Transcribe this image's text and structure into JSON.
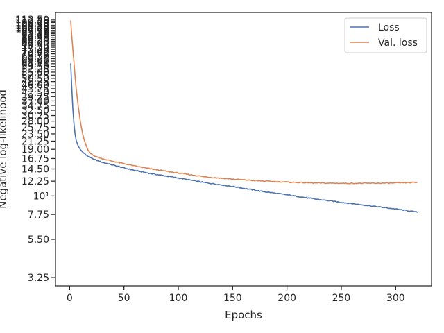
{
  "chart_data": {
    "type": "line",
    "xlabel": "Epochs",
    "ylabel": "Negative log-likelihood",
    "y_scale": "log",
    "grid": false,
    "legend_placement": "top-right",
    "xlim": [
      -13,
      333
    ],
    "ylim": [
      2.9,
      125
    ],
    "x_ticks": [
      0,
      50,
      100,
      150,
      200,
      250,
      300
    ],
    "x_tick_labels": [
      "0",
      "50",
      "100",
      "150",
      "200",
      "250",
      "300"
    ],
    "y_ticks": [
      {
        "value": 3.25,
        "label": "3.25"
      },
      {
        "value": 5.5,
        "label": "5.50"
      },
      {
        "value": 7.75,
        "label": "7.75"
      },
      {
        "value": 10,
        "label": "10¹"
      },
      {
        "value": 12.25,
        "label": "12.25"
      },
      {
        "value": 14.5,
        "label": "14.50"
      },
      {
        "value": 16.75,
        "label": "16.75"
      },
      {
        "value": 19.0,
        "label": "19.00"
      },
      {
        "value": 21.25,
        "label": "21.25"
      },
      {
        "value": 23.5,
        "label": "23.50"
      },
      {
        "value": 25.75,
        "label": "25.75"
      },
      {
        "value": 28.0,
        "label": "28.00"
      },
      {
        "value": 30.25,
        "label": "30.25"
      },
      {
        "value": 32.5,
        "label": "32.50"
      },
      {
        "value": 34.75,
        "label": "34.75"
      },
      {
        "value": 37.0,
        "label": "37.00"
      },
      {
        "value": 39.25,
        "label": "39.25"
      },
      {
        "value": 41.5,
        "label": "41.50"
      },
      {
        "value": 43.75,
        "label": "43.75"
      },
      {
        "value": 46.0,
        "label": "46.00"
      },
      {
        "value": 48.25,
        "label": "48.25"
      },
      {
        "value": 50.5,
        "label": "50.50"
      },
      {
        "value": 52.75,
        "label": "52.75"
      },
      {
        "value": 55.0,
        "label": "55.00"
      },
      {
        "value": 57.25,
        "label": "57.25"
      },
      {
        "value": 59.5,
        "label": "59.50"
      },
      {
        "value": 61.75,
        "label": "61.75"
      },
      {
        "value": 64.0,
        "label": "64.00"
      },
      {
        "value": 66.25,
        "label": "66.25"
      },
      {
        "value": 68.5,
        "label": "68.50"
      },
      {
        "value": 70.75,
        "label": "70.75"
      },
      {
        "value": 73.0,
        "label": "73.00"
      },
      {
        "value": 75.25,
        "label": "75.25"
      },
      {
        "value": 77.5,
        "label": "77.50"
      },
      {
        "value": 79.75,
        "label": "79.75"
      },
      {
        "value": 82.0,
        "label": "82.00"
      },
      {
        "value": 84.25,
        "label": "84.25"
      },
      {
        "value": 86.5,
        "label": "86.50"
      },
      {
        "value": 88.75,
        "label": "88.75"
      },
      {
        "value": 91.0,
        "label": "91.00"
      },
      {
        "value": 93.25,
        "label": "93.25"
      },
      {
        "value": 95.5,
        "label": "95.50"
      },
      {
        "value": 97.75,
        "label": "97.75"
      },
      {
        "value": 100.0,
        "label": "100.00"
      },
      {
        "value": 102.25,
        "label": "102.25"
      },
      {
        "value": 104.5,
        "label": "104.50"
      },
      {
        "value": 106.75,
        "label": "106.75"
      },
      {
        "value": 109.0,
        "label": "109.00"
      },
      {
        "value": 111.25,
        "label": "111.25"
      },
      {
        "value": 113.5,
        "label": "113.50"
      }
    ],
    "series": [
      {
        "name": "Loss",
        "color": "#4c72b0",
        "x": [
          1,
          2,
          3,
          4,
          5,
          6,
          8,
          10,
          12,
          15,
          18,
          20,
          25,
          30,
          40,
          50,
          60,
          75,
          100,
          125,
          150,
          175,
          200,
          225,
          250,
          275,
          300,
          320
        ],
        "y": [
          62.0,
          44.0,
          33.0,
          27.0,
          23.5,
          21.5,
          19.8,
          18.9,
          18.3,
          17.6,
          17.1,
          16.8,
          16.3,
          15.9,
          15.3,
          14.7,
          14.2,
          13.6,
          12.8,
          12.0,
          11.4,
          10.7,
          10.15,
          9.6,
          9.15,
          8.75,
          8.35,
          8.0
        ]
      },
      {
        "name": "Val. loss",
        "color": "#dd8452",
        "x": [
          1,
          2,
          3,
          4,
          5,
          6,
          8,
          10,
          12,
          14,
          16,
          18,
          20,
          25,
          30,
          40,
          50,
          60,
          75,
          100,
          125,
          150,
          175,
          200,
          225,
          250,
          275,
          300,
          320
        ],
        "y": [
          112.0,
          90.0,
          75.0,
          63.0,
          52.0,
          44.0,
          34.0,
          27.5,
          23.5,
          21.0,
          19.3,
          18.3,
          17.8,
          17.1,
          16.7,
          16.1,
          15.6,
          15.1,
          14.5,
          13.7,
          13.0,
          12.6,
          12.3,
          12.1,
          11.95,
          11.9,
          11.9,
          11.95,
          12.05
        ]
      }
    ]
  }
}
